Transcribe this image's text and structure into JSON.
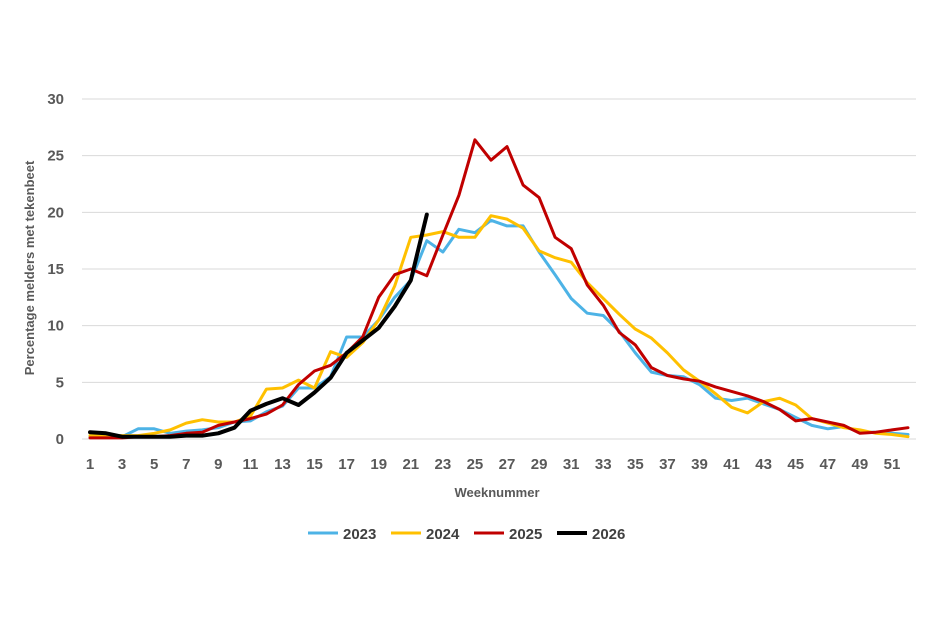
{
  "chart_data": {
    "type": "line",
    "title": "",
    "xlabel": "Weeknummer",
    "ylabel": "Percentage melders met tekenbeet",
    "xlim": [
      1,
      52
    ],
    "ylim": [
      0,
      30
    ],
    "y_ticks": [
      0,
      5,
      10,
      15,
      20,
      25,
      30
    ],
    "x_ticks": [
      1,
      3,
      5,
      7,
      9,
      11,
      13,
      15,
      17,
      19,
      21,
      23,
      25,
      27,
      29,
      31,
      33,
      35,
      37,
      39,
      41,
      43,
      45,
      47,
      49,
      51
    ],
    "grid": "horizontal",
    "legend_position": "bottom",
    "series": [
      {
        "name": "2023",
        "color": "#4db3e6",
        "x": [
          1,
          2,
          3,
          4,
          5,
          6,
          7,
          8,
          9,
          10,
          11,
          12,
          13,
          14,
          15,
          16,
          17,
          18,
          19,
          20,
          21,
          22,
          23,
          24,
          25,
          26,
          27,
          28,
          29,
          30,
          31,
          32,
          33,
          34,
          35,
          36,
          37,
          38,
          39,
          40,
          41,
          42,
          43,
          44,
          45,
          46,
          47,
          48,
          49,
          50,
          51,
          52
        ],
        "values": [
          0.2,
          0.2,
          0.2,
          0.9,
          0.9,
          0.5,
          0.7,
          0.8,
          1.0,
          1.5,
          1.6,
          2.4,
          2.9,
          4.5,
          4.5,
          5.5,
          9.0,
          9.0,
          10.5,
          12.5,
          14.0,
          17.5,
          16.5,
          18.5,
          18.2,
          19.3,
          18.8,
          18.8,
          16.5,
          14.5,
          12.4,
          11.1,
          10.9,
          9.5,
          7.6,
          5.9,
          5.6,
          5.5,
          4.8,
          3.6,
          3.4,
          3.6,
          3.1,
          2.6,
          1.9,
          1.2,
          0.9,
          1.1,
          0.6,
          0.6,
          0.5,
          0.4
        ]
      },
      {
        "name": "2024",
        "color": "#ffc000",
        "x": [
          1,
          2,
          3,
          4,
          5,
          6,
          7,
          8,
          9,
          10,
          11,
          12,
          13,
          14,
          15,
          16,
          17,
          18,
          19,
          20,
          21,
          22,
          23,
          24,
          25,
          26,
          27,
          28,
          29,
          30,
          31,
          32,
          33,
          34,
          35,
          36,
          37,
          38,
          39,
          40,
          41,
          42,
          43,
          44,
          45,
          46,
          47,
          48,
          49,
          50,
          51,
          52
        ],
        "values": [
          0.3,
          0.3,
          0.3,
          0.3,
          0.5,
          0.8,
          1.4,
          1.7,
          1.5,
          1.5,
          2.0,
          4.4,
          4.5,
          5.2,
          4.5,
          7.7,
          7.2,
          8.5,
          10.5,
          13.5,
          17.8,
          18.0,
          18.3,
          17.8,
          17.8,
          19.7,
          19.4,
          18.6,
          16.6,
          16.0,
          15.6,
          13.8,
          12.4,
          11.0,
          9.7,
          8.9,
          7.6,
          6.1,
          5.1,
          4.0,
          2.8,
          2.3,
          3.3,
          3.6,
          3.0,
          1.8,
          1.4,
          1.0,
          0.8,
          0.5,
          0.4,
          0.2
        ]
      },
      {
        "name": "2025",
        "color": "#c00000",
        "x": [
          1,
          2,
          3,
          4,
          5,
          6,
          7,
          8,
          9,
          10,
          11,
          12,
          13,
          14,
          15,
          16,
          17,
          18,
          19,
          20,
          21,
          22,
          23,
          24,
          25,
          26,
          27,
          28,
          29,
          30,
          31,
          32,
          33,
          34,
          35,
          36,
          37,
          38,
          39,
          40,
          41,
          42,
          43,
          44,
          45,
          46,
          47,
          48,
          49,
          50,
          51,
          52
        ],
        "values": [
          0.1,
          0.1,
          0.1,
          0.2,
          0.2,
          0.3,
          0.5,
          0.6,
          1.2,
          1.5,
          1.8,
          2.2,
          3.0,
          4.8,
          6.0,
          6.5,
          7.6,
          9.0,
          12.5,
          14.5,
          15.0,
          14.4,
          18.0,
          21.5,
          26.4,
          24.6,
          25.8,
          22.4,
          21.3,
          17.8,
          16.8,
          13.6,
          11.8,
          9.4,
          8.3,
          6.3,
          5.6,
          5.3,
          5.1,
          4.6,
          4.2,
          3.8,
          3.3,
          2.6,
          1.6,
          1.8,
          1.5,
          1.2,
          0.5,
          0.6,
          0.8,
          1.0
        ]
      },
      {
        "name": "2026",
        "color": "#000000",
        "x": [
          1,
          2,
          3,
          4,
          5,
          6,
          7,
          8,
          9,
          10,
          11,
          12,
          13,
          14,
          15,
          16,
          17,
          18,
          19,
          20,
          21,
          22
        ],
        "values": [
          0.6,
          0.5,
          0.2,
          0.2,
          0.2,
          0.2,
          0.3,
          0.3,
          0.5,
          1.0,
          2.5,
          3.1,
          3.6,
          3.0,
          4.1,
          5.4,
          7.6,
          8.7,
          9.8,
          11.7,
          14.0,
          19.8
        ]
      }
    ]
  }
}
